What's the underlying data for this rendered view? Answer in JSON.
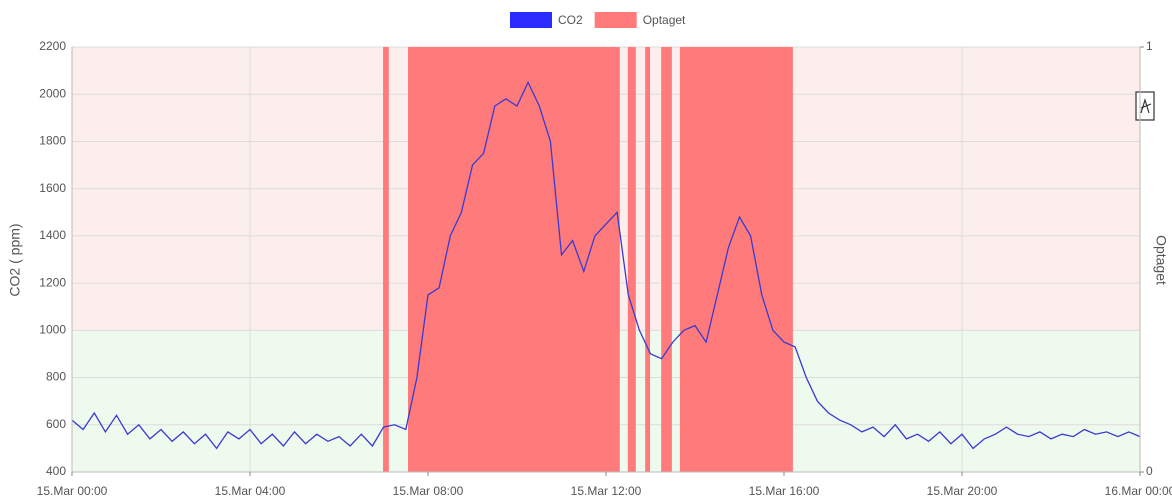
{
  "chart_data": {
    "type": "line",
    "y_label": "CO2 ( ppm)",
    "y2_label": "Optaget",
    "xlim": [
      0,
      24
    ],
    "xticks": [
      {
        "value": 0,
        "label": "15.Mar 00:00"
      },
      {
        "value": 4,
        "label": "15.Mar 04:00"
      },
      {
        "value": 8,
        "label": "15.Mar 08:00"
      },
      {
        "value": 12,
        "label": "15.Mar 12:00"
      },
      {
        "value": 16,
        "label": "15.Mar 16:00"
      },
      {
        "value": 20,
        "label": "15.Mar 20:00"
      },
      {
        "value": 24,
        "label": "16.Mar 00:00"
      }
    ],
    "ylim": [
      400,
      2200
    ],
    "yticks": [
      400,
      600,
      800,
      1000,
      1200,
      1400,
      1600,
      1800,
      2000,
      2200
    ],
    "y2lim": [
      0,
      1
    ],
    "y2ticks": [
      0,
      1
    ],
    "grid": true,
    "legend": "top",
    "bands": [
      {
        "from": 400,
        "to": 1000,
        "color": "#effaef"
      },
      {
        "from": 1000,
        "to": 2200,
        "color": "#fdeeee"
      }
    ],
    "series": [
      {
        "name": "CO2",
        "color": "#3a3ad0",
        "legend_color": "#2b2bff",
        "x": [
          0,
          0.25,
          0.5,
          0.75,
          1,
          1.25,
          1.5,
          1.75,
          2,
          2.25,
          2.5,
          2.75,
          3,
          3.25,
          3.5,
          3.75,
          4,
          4.25,
          4.5,
          4.75,
          5,
          5.25,
          5.5,
          5.75,
          6,
          6.25,
          6.5,
          6.75,
          7,
          7.25,
          7.5,
          7.75,
          8,
          8.25,
          8.5,
          8.75,
          9,
          9.25,
          9.5,
          9.75,
          10,
          10.25,
          10.5,
          10.75,
          11,
          11.25,
          11.5,
          11.75,
          12,
          12.25,
          12.5,
          12.75,
          13,
          13.25,
          13.5,
          13.75,
          14,
          14.25,
          14.5,
          14.75,
          15,
          15.25,
          15.5,
          15.75,
          16,
          16.25,
          16.5,
          16.75,
          17,
          17.25,
          17.5,
          17.75,
          18,
          18.25,
          18.5,
          18.75,
          19,
          19.25,
          19.5,
          19.75,
          20,
          20.25,
          20.5,
          20.75,
          21,
          21.25,
          21.5,
          21.75,
          22,
          22.25,
          22.5,
          22.75,
          23,
          23.25,
          23.5,
          23.75,
          24
        ],
        "values": [
          620,
          580,
          650,
          570,
          640,
          560,
          600,
          540,
          580,
          530,
          570,
          520,
          560,
          500,
          570,
          540,
          580,
          520,
          560,
          510,
          570,
          520,
          560,
          530,
          550,
          510,
          560,
          510,
          590,
          600,
          580,
          800,
          1150,
          1180,
          1400,
          1500,
          1700,
          1750,
          1950,
          1980,
          1950,
          2050,
          1950,
          1800,
          1320,
          1380,
          1250,
          1400,
          1450,
          1500,
          1150,
          1000,
          900,
          880,
          950,
          1000,
          1020,
          950,
          1150,
          1350,
          1480,
          1400,
          1150,
          1000,
          950,
          930,
          800,
          700,
          650,
          620,
          600,
          570,
          590,
          550,
          600,
          540,
          560,
          530,
          570,
          520,
          560,
          500,
          540,
          560,
          590,
          560,
          550,
          570,
          540,
          560,
          550,
          580,
          560,
          570,
          550,
          570,
          550
        ]
      },
      {
        "name": "Optaget",
        "type": "step",
        "axis": "y2",
        "color": "#ff7b7b",
        "x": [
          0,
          6.99,
          7.12,
          7.55,
          12.31,
          12.49,
          12.67,
          12.88,
          12.99,
          13.24,
          13.48,
          13.66,
          16.2,
          24
        ],
        "values": [
          0,
          1,
          0,
          1,
          0,
          1,
          0,
          1,
          0,
          1,
          0,
          1,
          0,
          0
        ]
      }
    ]
  }
}
